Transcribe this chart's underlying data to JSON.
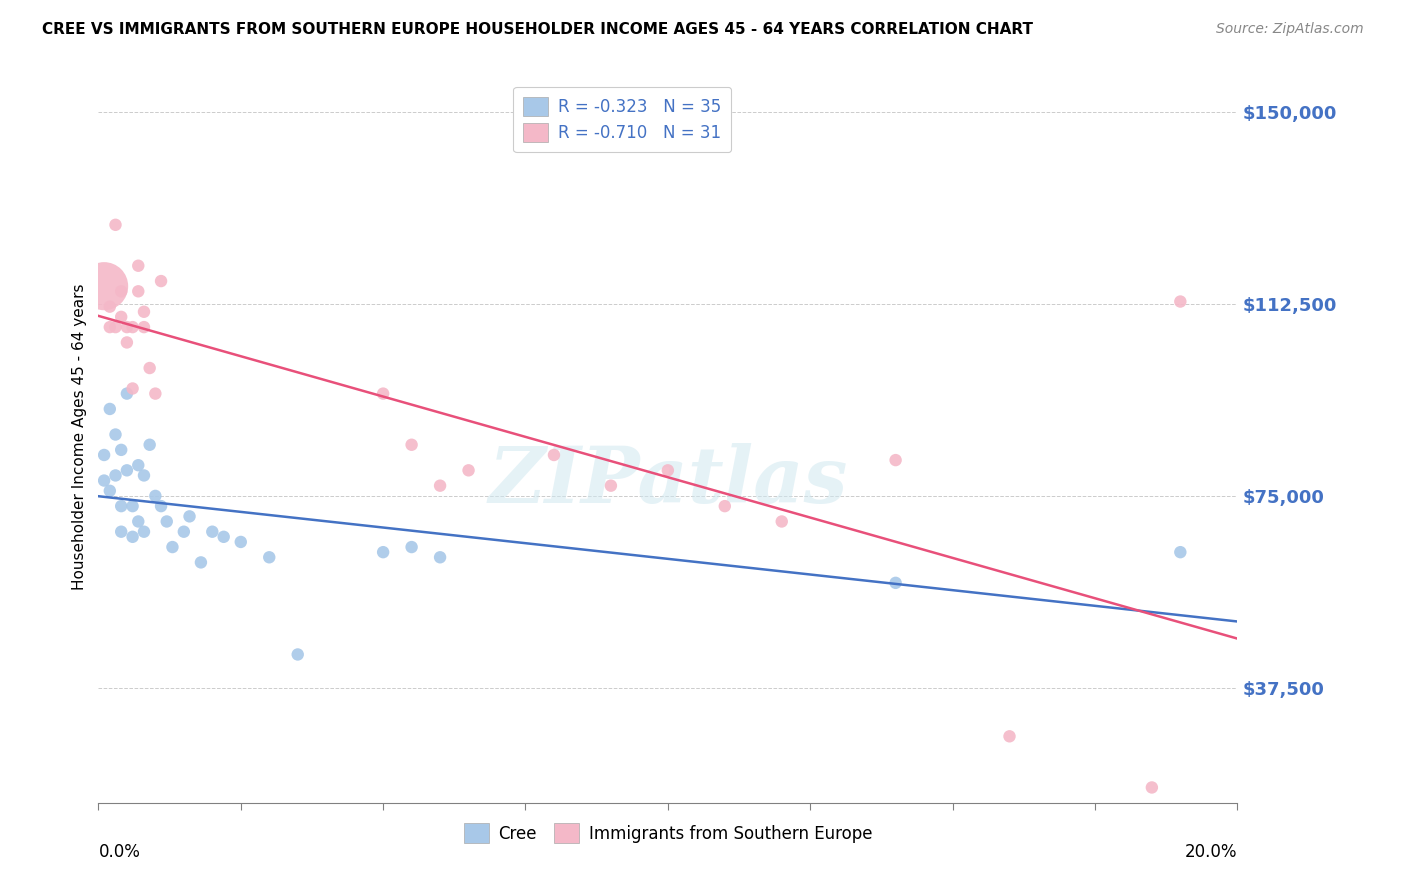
{
  "title": "CREE VS IMMIGRANTS FROM SOUTHERN EUROPE HOUSEHOLDER INCOME AGES 45 - 64 YEARS CORRELATION CHART",
  "source": "Source: ZipAtlas.com",
  "ylabel": "Householder Income Ages 45 - 64 years",
  "xmin": 0.0,
  "xmax": 0.2,
  "ymin": 15000,
  "ymax": 158000,
  "yticks": [
    37500,
    75000,
    112500,
    150000
  ],
  "ytick_labels": [
    "$37,500",
    "$75,000",
    "$112,500",
    "$150,000"
  ],
  "legend_cree_R": "-0.323",
  "legend_cree_N": "35",
  "legend_imm_R": "-0.710",
  "legend_imm_N": "31",
  "cree_color": "#a8c8e8",
  "imm_color": "#f4b8c8",
  "cree_line_color": "#4472c4",
  "imm_line_color": "#e8507a",
  "watermark": "ZIPatlas",
  "cree_x": [
    0.001,
    0.001,
    0.002,
    0.002,
    0.003,
    0.003,
    0.004,
    0.004,
    0.004,
    0.005,
    0.005,
    0.006,
    0.006,
    0.007,
    0.007,
    0.008,
    0.008,
    0.009,
    0.01,
    0.011,
    0.012,
    0.013,
    0.015,
    0.016,
    0.018,
    0.02,
    0.022,
    0.025,
    0.03,
    0.035,
    0.05,
    0.055,
    0.06,
    0.14,
    0.19
  ],
  "cree_y": [
    83000,
    78000,
    92000,
    76000,
    87000,
    79000,
    84000,
    73000,
    68000,
    95000,
    80000,
    73000,
    67000,
    81000,
    70000,
    79000,
    68000,
    85000,
    75000,
    73000,
    70000,
    65000,
    68000,
    71000,
    62000,
    68000,
    67000,
    66000,
    63000,
    44000,
    64000,
    65000,
    63000,
    58000,
    64000
  ],
  "cree_sizes": [
    80,
    80,
    80,
    80,
    80,
    80,
    80,
    80,
    80,
    80,
    80,
    80,
    80,
    80,
    80,
    80,
    80,
    80,
    80,
    80,
    80,
    80,
    80,
    80,
    80,
    80,
    80,
    80,
    80,
    80,
    80,
    80,
    80,
    80,
    80
  ],
  "imm_x": [
    0.001,
    0.002,
    0.002,
    0.003,
    0.003,
    0.004,
    0.004,
    0.005,
    0.005,
    0.006,
    0.006,
    0.007,
    0.007,
    0.008,
    0.008,
    0.009,
    0.01,
    0.011,
    0.05,
    0.055,
    0.06,
    0.065,
    0.08,
    0.09,
    0.1,
    0.11,
    0.12,
    0.14,
    0.16,
    0.185,
    0.19
  ],
  "imm_y": [
    116000,
    112000,
    108000,
    128000,
    108000,
    115000,
    110000,
    105000,
    108000,
    96000,
    108000,
    120000,
    115000,
    111000,
    108000,
    100000,
    95000,
    117000,
    95000,
    85000,
    77000,
    80000,
    83000,
    77000,
    80000,
    73000,
    70000,
    82000,
    28000,
    18000,
    113000
  ],
  "imm_sizes": [
    1200,
    80,
    80,
    80,
    80,
    80,
    80,
    80,
    80,
    80,
    80,
    80,
    80,
    80,
    80,
    80,
    80,
    80,
    80,
    80,
    80,
    80,
    80,
    80,
    80,
    80,
    80,
    80,
    80,
    80,
    80
  ]
}
